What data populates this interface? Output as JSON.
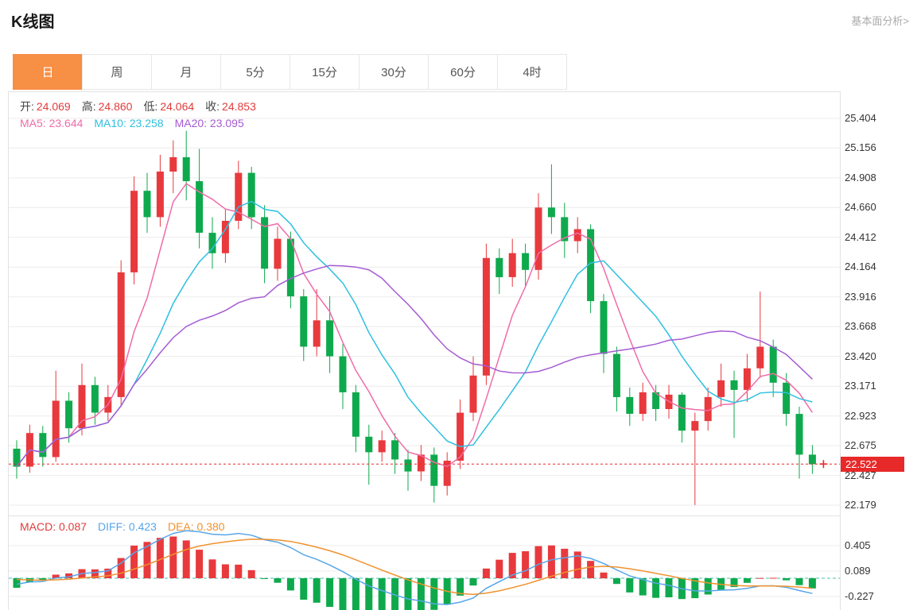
{
  "header": {
    "title": "K线图",
    "link": "基本面分析>"
  },
  "tabs": {
    "items": [
      "日",
      "周",
      "月",
      "5分",
      "15分",
      "30分",
      "60分",
      "4时"
    ],
    "selected_index": 0,
    "accent": "#f78f45"
  },
  "overlay": {
    "ohlc": [
      {
        "label": "开:",
        "value": "24.069"
      },
      {
        "label": "高:",
        "value": "24.860"
      },
      {
        "label": "低:",
        "value": "24.064"
      },
      {
        "label": "收:",
        "value": "24.853"
      }
    ],
    "ohlc_value_color": "#e23b3b",
    "ma": [
      {
        "label": "MA5:",
        "value": "23.644",
        "color": "#f06ca8"
      },
      {
        "label": "MA10:",
        "value": "23.258",
        "color": "#2fc0e0"
      },
      {
        "label": "MA20:",
        "value": "23.095",
        "color": "#a55bd4"
      }
    ]
  },
  "macd_overlay": [
    {
      "label": "MACD:",
      "value": "0.087",
      "color": "#e23b3b"
    },
    {
      "label": "DIFF:",
      "value": "0.423",
      "color": "#58a6e8"
    },
    {
      "label": "DEA:",
      "value": "0.380",
      "color": "#f0922f"
    }
  ],
  "chart_data": {
    "type": "candlestick",
    "ohlc_format": [
      "open",
      "close",
      "low",
      "high"
    ],
    "price_axis_ticks": [
      "25.404",
      "25.156",
      "24.908",
      "24.660",
      "24.412",
      "24.164",
      "23.916",
      "23.668",
      "23.420",
      "23.171",
      "22.923",
      "22.675",
      "22.427",
      "22.179"
    ],
    "macd_axis_ticks": [
      "0.405",
      "0.089",
      "-0.227"
    ],
    "current_price": "22.522",
    "ma_windows": [
      5,
      10,
      20
    ],
    "colors": {
      "up": "#e8393d",
      "down": "#0fa94d",
      "ma5": "#f06ca8",
      "ma10": "#2fc0e0",
      "ma20": "#a55bd4",
      "diff": "#58a6e8",
      "dea": "#f0922f",
      "current": "#e82929",
      "grid": "#ececec",
      "macd_zero": "#46c0ae"
    },
    "candles": [
      [
        22.65,
        22.5,
        22.4,
        22.72
      ],
      [
        22.5,
        22.78,
        22.45,
        22.85
      ],
      [
        22.78,
        22.58,
        22.5,
        22.84
      ],
      [
        22.58,
        23.05,
        22.54,
        23.3
      ],
      [
        23.05,
        22.82,
        22.7,
        23.12
      ],
      [
        22.82,
        23.18,
        22.76,
        23.36
      ],
      [
        23.18,
        22.95,
        22.85,
        23.25
      ],
      [
        22.95,
        23.08,
        22.88,
        23.18
      ],
      [
        23.08,
        24.12,
        23.0,
        24.22
      ],
      [
        24.12,
        24.8,
        24.02,
        24.92
      ],
      [
        24.8,
        24.58,
        24.45,
        24.95
      ],
      [
        24.58,
        24.96,
        24.5,
        25.1
      ],
      [
        24.96,
        25.08,
        24.78,
        25.22
      ],
      [
        25.08,
        24.88,
        24.72,
        25.3
      ],
      [
        24.88,
        24.45,
        24.32,
        25.15
      ],
      [
        24.45,
        24.28,
        24.15,
        24.58
      ],
      [
        24.28,
        24.55,
        24.2,
        24.65
      ],
      [
        24.55,
        24.95,
        24.48,
        25.05
      ],
      [
        24.95,
        24.58,
        24.48,
        25.0
      ],
      [
        24.58,
        24.15,
        24.03,
        24.68
      ],
      [
        24.15,
        24.4,
        24.05,
        24.5
      ],
      [
        24.4,
        23.92,
        23.82,
        24.46
      ],
      [
        23.92,
        23.5,
        23.38,
        23.98
      ],
      [
        23.5,
        23.72,
        23.42,
        23.98
      ],
      [
        23.72,
        23.42,
        23.28,
        23.92
      ],
      [
        23.42,
        23.12,
        22.98,
        23.52
      ],
      [
        23.12,
        22.75,
        22.62,
        23.18
      ],
      [
        22.75,
        22.62,
        22.35,
        22.85
      ],
      [
        22.62,
        22.72,
        22.54,
        22.8
      ],
      [
        22.72,
        22.56,
        22.44,
        22.78
      ],
      [
        22.56,
        22.46,
        22.3,
        22.64
      ],
      [
        22.46,
        22.6,
        22.38,
        22.68
      ],
      [
        22.6,
        22.34,
        22.2,
        22.66
      ],
      [
        22.34,
        22.55,
        22.26,
        22.62
      ],
      [
        22.55,
        22.95,
        22.48,
        23.06
      ],
      [
        22.95,
        23.26,
        22.88,
        23.42
      ],
      [
        23.26,
        24.24,
        23.18,
        24.36
      ],
      [
        24.24,
        24.08,
        23.94,
        24.32
      ],
      [
        24.08,
        24.28,
        24.0,
        24.4
      ],
      [
        24.28,
        24.14,
        24.0,
        24.36
      ],
      [
        24.14,
        24.66,
        24.06,
        24.78
      ],
      [
        24.66,
        24.58,
        24.44,
        25.02
      ],
      [
        24.58,
        24.38,
        24.24,
        24.7
      ],
      [
        24.38,
        24.48,
        24.28,
        24.58
      ],
      [
        24.48,
        23.88,
        23.78,
        24.52
      ],
      [
        23.88,
        23.44,
        23.28,
        23.94
      ],
      [
        23.44,
        23.08,
        22.96,
        23.5
      ],
      [
        23.08,
        22.94,
        22.84,
        23.16
      ],
      [
        22.94,
        23.12,
        22.88,
        23.2
      ],
      [
        23.12,
        22.98,
        22.88,
        23.18
      ],
      [
        22.98,
        23.1,
        22.9,
        23.18
      ],
      [
        23.1,
        22.8,
        22.7,
        23.12
      ],
      [
        22.8,
        22.88,
        22.18,
        22.95
      ],
      [
        22.88,
        23.08,
        22.8,
        23.16
      ],
      [
        23.08,
        23.22,
        23.0,
        23.36
      ],
      [
        23.22,
        23.14,
        22.74,
        23.3
      ],
      [
        23.14,
        23.32,
        23.04,
        23.44
      ],
      [
        23.32,
        23.5,
        23.24,
        23.96
      ],
      [
        23.5,
        23.2,
        23.08,
        23.56
      ],
      [
        23.2,
        22.94,
        22.84,
        23.28
      ],
      [
        22.94,
        22.6,
        22.4,
        23.0
      ],
      [
        22.6,
        22.52,
        22.44,
        22.68
      ]
    ]
  }
}
